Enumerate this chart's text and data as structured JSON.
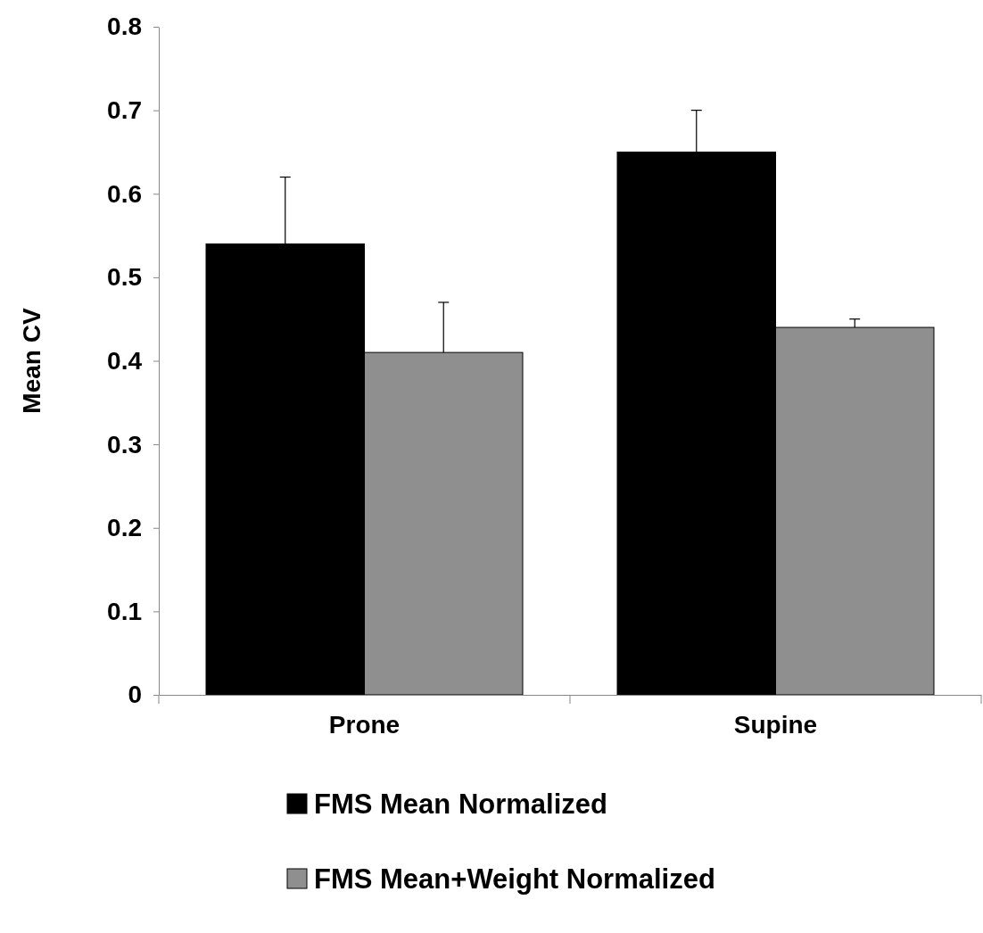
{
  "chart_data": {
    "type": "bar",
    "ylabel": "Mean CV",
    "categories": [
      "Prone",
      "Supine"
    ],
    "series": [
      {
        "name": "FMS Mean Normalized",
        "color": "#000000",
        "values": [
          0.54,
          0.65
        ],
        "errors": [
          [
            0.54,
            0.62
          ],
          [
            0.65,
            0.7
          ]
        ]
      },
      {
        "name": "FMS Mean+Weight Normalized",
        "color": "#8f8f8f",
        "values": [
          0.41,
          0.44
        ],
        "errors": [
          [
            0.41,
            0.47
          ],
          [
            0.44,
            0.45
          ]
        ]
      }
    ],
    "ylim": [
      0,
      0.8
    ],
    "yticks": [
      0,
      0.1,
      0.2,
      0.3,
      0.4,
      0.5,
      0.6,
      0.7,
      0.8
    ],
    "grid": false,
    "legend": "bottom"
  }
}
